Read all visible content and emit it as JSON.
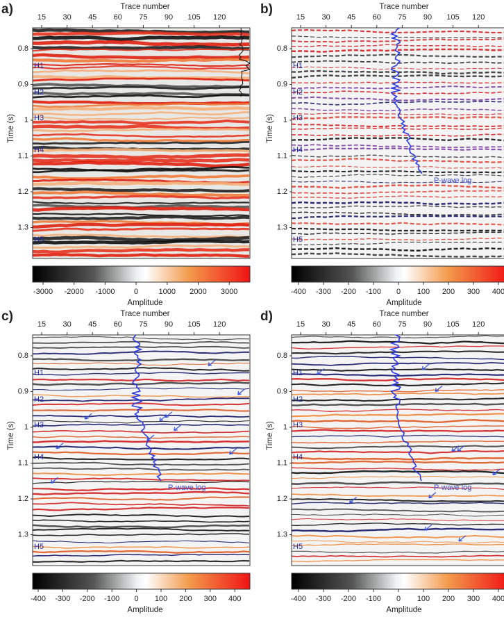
{
  "panels": [
    {
      "label": "a)",
      "x_axis_title": "Trace number",
      "y_axis_title": "Time (s)",
      "x_ticks": [
        15,
        30,
        45,
        60,
        75,
        90,
        105,
        120
      ],
      "y_ticks": [
        0.8,
        0.9,
        1,
        1.1,
        1.2,
        1.3
      ],
      "horizons": [
        "H1",
        "H2",
        "H3",
        "H4",
        "H5"
      ],
      "colorbar_ticks": [
        -3000,
        -2000,
        -1000,
        0,
        1000,
        2000,
        3000
      ],
      "colorbar_title": "Amplitude"
    },
    {
      "label": "b)",
      "x_axis_title": "Trace number",
      "y_axis_title": "Time (s)",
      "x_ticks": [
        15,
        30,
        45,
        60,
        75,
        90,
        105,
        120
      ],
      "y_ticks": [
        0.8,
        0.9,
        1,
        1.1,
        1.2,
        1.3
      ],
      "horizons": [
        "H1",
        "H2",
        "H3",
        "H4",
        "H5"
      ],
      "annotation": "P-wave log",
      "colorbar_ticks": [
        -400,
        -300,
        -200,
        -100,
        0,
        100,
        200,
        300,
        400
      ],
      "colorbar_title": "Amplitude"
    },
    {
      "label": "c)",
      "x_axis_title": "Trace number",
      "y_axis_title": "Time (s)",
      "x_ticks": [
        15,
        30,
        45,
        60,
        75,
        90,
        105,
        120
      ],
      "y_ticks": [
        0.8,
        0.9,
        1,
        1.1,
        1.2,
        1.3
      ],
      "horizons": [
        "H1",
        "H2",
        "H3",
        "H4",
        "H5"
      ],
      "annotation": "P-wave log",
      "colorbar_ticks": [
        -400,
        -300,
        -200,
        -100,
        0,
        100,
        200,
        300,
        400
      ],
      "colorbar_title": "Amplitude"
    },
    {
      "label": "d)",
      "x_axis_title": "Trace number",
      "y_axis_title": "Time (s)",
      "x_ticks": [
        15,
        30,
        45,
        60,
        75,
        90,
        105,
        120
      ],
      "y_ticks": [
        0.8,
        0.9,
        1,
        1.1,
        1.2,
        1.3
      ],
      "horizons": [
        "H1",
        "H2",
        "H3",
        "H4",
        "H5"
      ],
      "annotation": "P-wave log",
      "colorbar_ticks": [
        -400,
        -300,
        -200,
        -100,
        0,
        100,
        200,
        300,
        400
      ],
      "colorbar_title": "Amplitude"
    }
  ]
}
